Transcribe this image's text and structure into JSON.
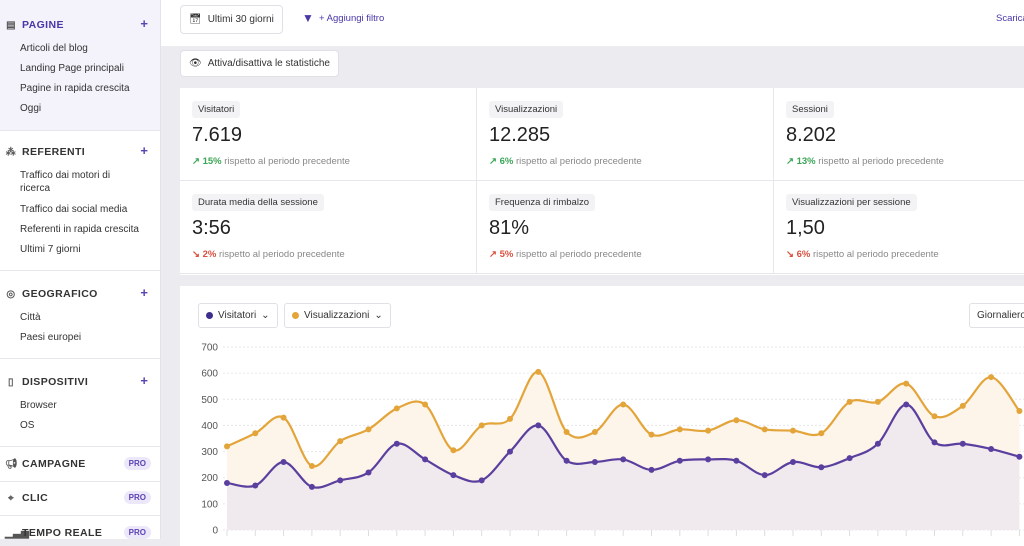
{
  "sidebar": {
    "pagine": {
      "title": "PAGINE",
      "items": [
        "Articoli del blog",
        "Landing Page principali",
        "Pagine in rapida crescita",
        "Oggi"
      ]
    },
    "referenti": {
      "title": "REFERENTI",
      "items": [
        "Traffico dai motori di ricerca",
        "Traffico dai social media",
        "Referenti in rapida crescita",
        "Ultimi 7 giorni"
      ]
    },
    "geografico": {
      "title": "GEOGRAFICO",
      "items": [
        "Città",
        "Paesi europei"
      ]
    },
    "dispositivi": {
      "title": "DISPOSITIVI",
      "items": [
        "Browser",
        "OS"
      ]
    },
    "campagne": {
      "title": "CAMPAGNE",
      "badge": "PRO"
    },
    "clic": {
      "title": "CLIC",
      "badge": "PRO"
    },
    "tempo_reale": {
      "title": "TEMPO REALE",
      "badge": "PRO"
    },
    "plus": "+"
  },
  "toolbar": {
    "date_range": "Ultimi 30 giorni",
    "add_filter": "+ Aggiungi filtro",
    "download": "Scarica",
    "toggle_stats": "Attiva/disattiva le statistiche"
  },
  "stats": [
    {
      "label": "Visitatori",
      "value": "7.619",
      "change": "15%",
      "dir": "up",
      "arrow": "↗",
      "note": "rispetto al periodo precedente"
    },
    {
      "label": "Visualizzazioni",
      "value": "12.285",
      "change": "6%",
      "dir": "up",
      "arrow": "↗",
      "note": "rispetto al periodo precedente"
    },
    {
      "label": "Sessioni",
      "value": "8.202",
      "change": "13%",
      "dir": "up",
      "arrow": "↗",
      "note": "rispetto al periodo precedente"
    },
    {
      "label": "Durata media della sessione",
      "value": "3:56",
      "change": "2%",
      "dir": "bad",
      "arrow": "↘",
      "note": "rispetto al periodo precedente"
    },
    {
      "label": "Frequenza di rimbalzo",
      "value": "81%",
      "change": "5%",
      "dir": "bad",
      "arrow": "↗",
      "note": "rispetto al periodo precedente"
    },
    {
      "label": "Visualizzazioni per sessione",
      "value": "1,50",
      "change": "6%",
      "dir": "bad",
      "arrow": "↘",
      "note": "rispetto al periodo precedente"
    }
  ],
  "chart_controls": {
    "interval": "Giornaliero"
  },
  "chart_data": {
    "type": "line",
    "ylim": [
      0,
      700
    ],
    "yticks": [
      0,
      100,
      200,
      300,
      400,
      500,
      600,
      700
    ],
    "grid": true,
    "series": [
      {
        "name": "Visitatori",
        "color": "#5b3f9e",
        "values": [
          180,
          170,
          260,
          165,
          190,
          220,
          330,
          270,
          210,
          190,
          300,
          400,
          265,
          260,
          270,
          230,
          265,
          270,
          265,
          210,
          260,
          240,
          275,
          330,
          480,
          335,
          330,
          310,
          280
        ]
      },
      {
        "name": "Visualizzazioni",
        "color": "#e3a43a",
        "values": [
          320,
          370,
          430,
          245,
          340,
          385,
          465,
          480,
          305,
          400,
          425,
          605,
          375,
          375,
          480,
          365,
          385,
          380,
          420,
          385,
          380,
          370,
          490,
          490,
          560,
          435,
          475,
          585,
          455
        ]
      }
    ]
  }
}
